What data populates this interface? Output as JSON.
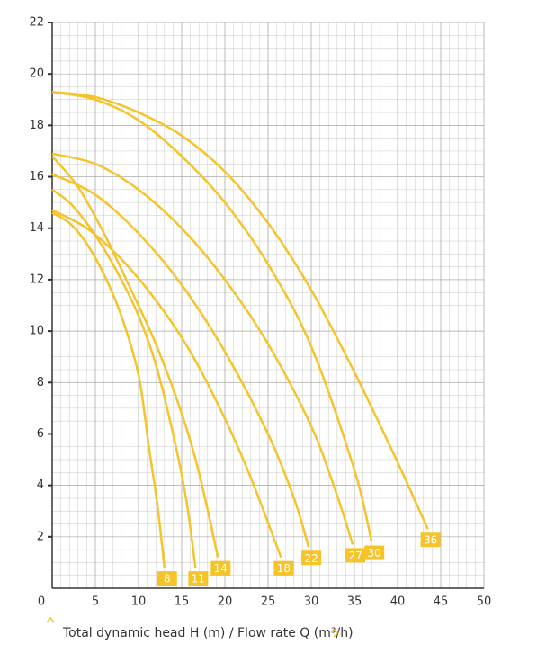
{
  "chart_data": {
    "type": "line",
    "x_label": "Total dynamic head H (m) / Flow rate Q (m³/h)",
    "xlim": [
      0,
      50
    ],
    "xticks": [
      0,
      5,
      10,
      15,
      20,
      25,
      30,
      35,
      40,
      45,
      50
    ],
    "ylim": [
      0,
      22
    ],
    "yticks": [
      2,
      4,
      6,
      8,
      10,
      12,
      14,
      16,
      18,
      20,
      22
    ],
    "grid": true,
    "color": "#f6c42a",
    "series": [
      {
        "name": "8",
        "x": [
          0,
          2,
          4,
          6,
          8,
          10,
          11.2,
          12.2,
          13
        ],
        "values": [
          14.6,
          14.2,
          13.4,
          12.2,
          10.6,
          8.3,
          5.5,
          3.2,
          0.8
        ]
      },
      {
        "name": "11",
        "x": [
          0,
          2,
          4,
          6,
          8,
          10,
          12,
          14,
          15.5,
          16.6
        ],
        "values": [
          15.5,
          15,
          14.2,
          13.2,
          12,
          10.6,
          8.7,
          6,
          3.5,
          0.8
        ]
      },
      {
        "name": "14",
        "x": [
          0,
          3,
          6,
          9,
          12,
          15,
          17,
          19.2
        ],
        "values": [
          16.8,
          15.6,
          13.8,
          11.7,
          9.5,
          6.8,
          4.5,
          1.2
        ]
      },
      {
        "name": "18",
        "x": [
          0,
          4,
          8,
          12,
          16,
          20,
          23,
          26.5
        ],
        "values": [
          14.7,
          14,
          12.8,
          11.2,
          9.2,
          6.6,
          4.3,
          1.2
        ]
      },
      {
        "name": "22",
        "x": [
          0,
          5,
          10,
          15,
          20,
          25,
          28,
          29.7
        ],
        "values": [
          16.1,
          15.3,
          13.8,
          11.8,
          9.2,
          6,
          3.5,
          1.6
        ]
      },
      {
        "name": "27",
        "x": [
          0,
          5,
          10,
          15,
          20,
          25,
          30,
          33,
          34.8
        ],
        "values": [
          16.9,
          16.5,
          15.5,
          14,
          12,
          9.5,
          6.3,
          3.6,
          1.7
        ]
      },
      {
        "name": "30",
        "x": [
          0,
          5,
          10,
          15,
          20,
          25,
          30,
          35,
          37
        ],
        "values": [
          19.3,
          19,
          18.2,
          16.8,
          15,
          12.6,
          9.4,
          4.6,
          1.8
        ]
      },
      {
        "name": "36",
        "x": [
          0,
          5,
          10,
          15,
          20,
          25,
          30,
          35,
          40,
          43.5
        ],
        "values": [
          19.3,
          19.1,
          18.5,
          17.6,
          16.2,
          14.2,
          11.6,
          8.4,
          4.9,
          2.3
        ]
      }
    ]
  }
}
